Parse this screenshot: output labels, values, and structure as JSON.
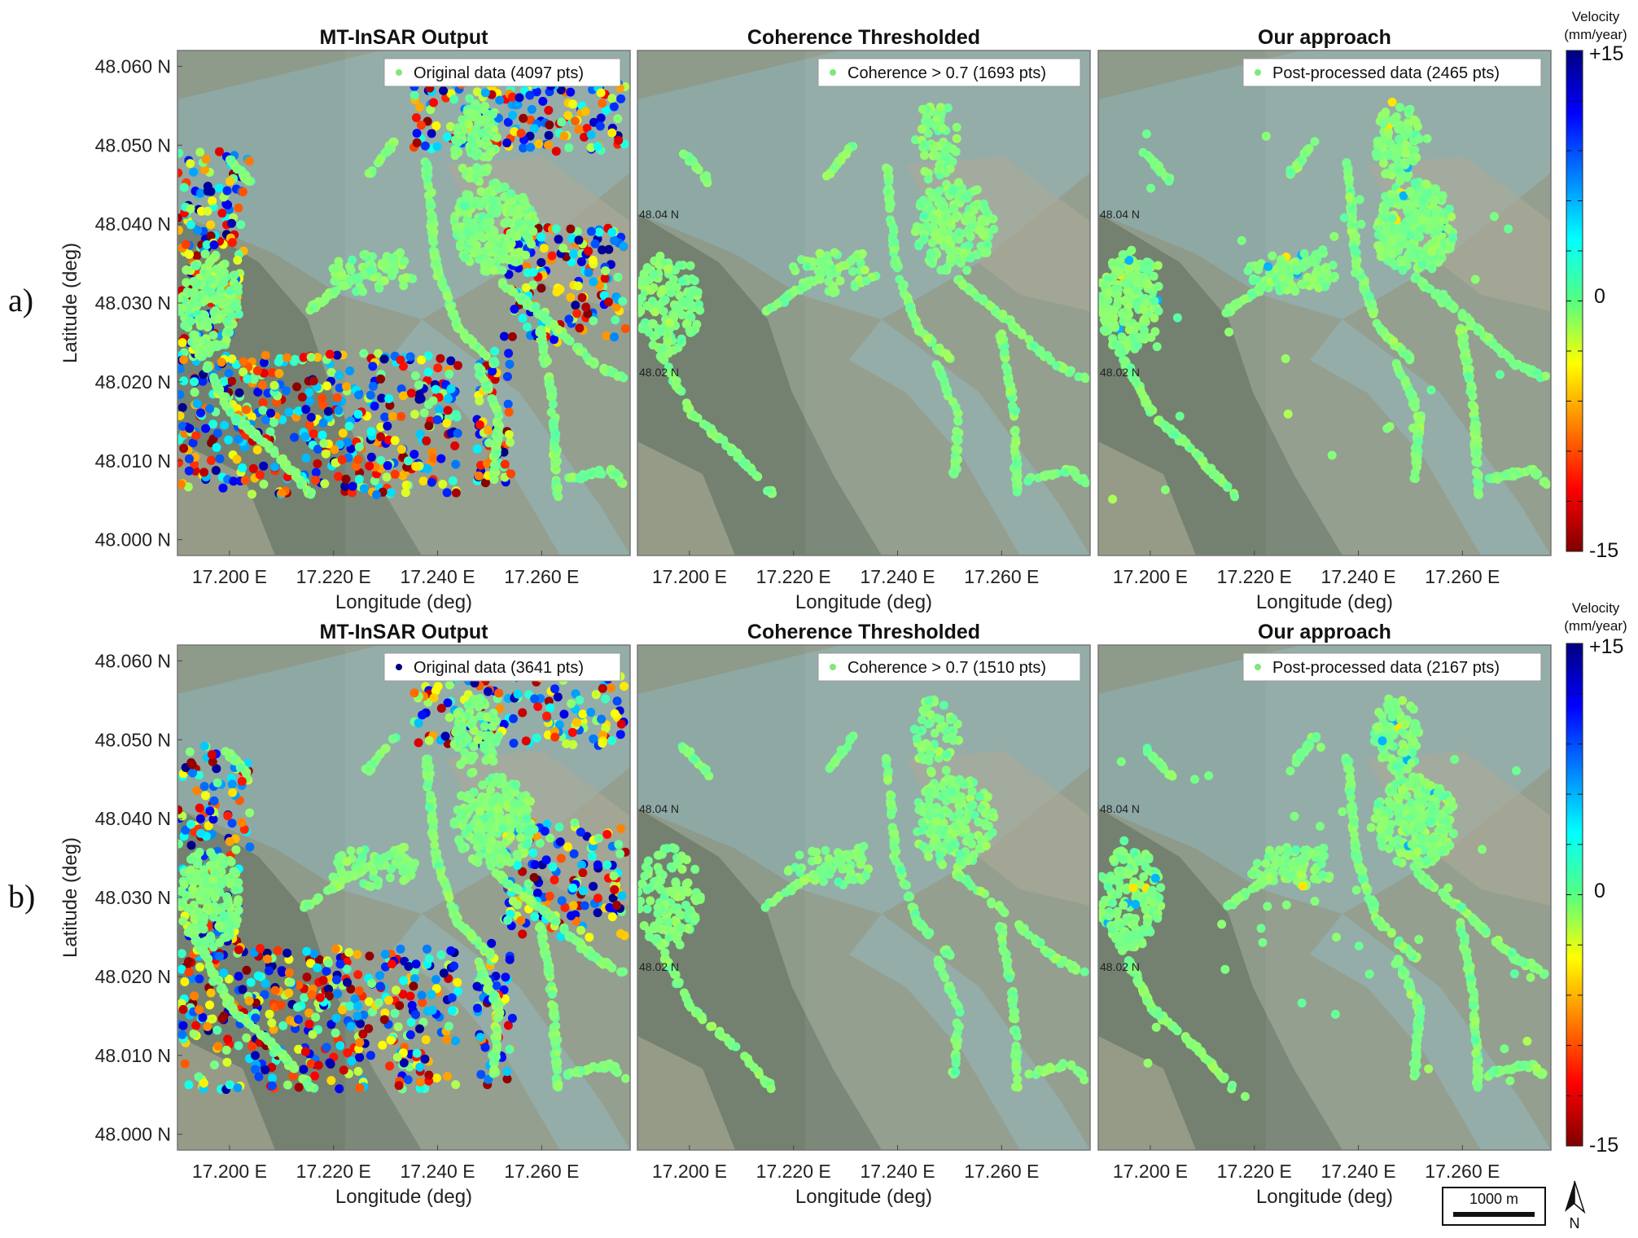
{
  "figure": {
    "colorbar": {
      "title_line1": "Velocity",
      "title_line2": "(mm/year)",
      "ticks": [
        "+15",
        "0",
        "-15"
      ],
      "range": [
        -15,
        15
      ]
    },
    "scale_bar": {
      "label": "1000 m"
    },
    "north_arrow": {
      "label": "N"
    },
    "map_grid_labels": [
      "48.04 N",
      "48.02 N"
    ],
    "colors": {
      "coherent": "#7fe87a",
      "map_field": "#8e9a8a",
      "map_river": "#8eaaa6",
      "map_forest": "#5f6e5c"
    }
  },
  "chart_data": [
    {
      "type": "scatter",
      "row": "a)",
      "title": "MT-InSAR Output",
      "legend": "Original data (4097 pts)",
      "xlabel": "Longitude (deg)",
      "ylabel": "Latitude (deg)",
      "xticks": [
        "17.200 E",
        "17.220 E",
        "17.240 E",
        "17.260 E"
      ],
      "yticks": [
        "48.060 N",
        "48.050 N",
        "48.040 N",
        "48.030 N",
        "48.020 N",
        "48.010 N",
        "48.000 N"
      ],
      "xlim": [
        17.19,
        17.277
      ],
      "ylim": [
        47.998,
        48.062
      ],
      "points": 4097,
      "coherence_threshold": null
    },
    {
      "type": "scatter",
      "row": "a)",
      "title": "Coherence Thresholded",
      "legend": "Coherence > 0.7 (1693 pts)",
      "xlabel": "Longitude (deg)",
      "ylabel": "",
      "xticks": [
        "17.200 E",
        "17.220 E",
        "17.240 E",
        "17.260 E"
      ],
      "yticks": [],
      "xlim": [
        17.19,
        17.277
      ],
      "ylim": [
        47.998,
        48.062
      ],
      "points": 1693,
      "coherence_threshold": 0.7
    },
    {
      "type": "scatter",
      "row": "a)",
      "title": "Our approach",
      "legend": "Post-processed data (2465 pts)",
      "xlabel": "Longitude (deg)",
      "ylabel": "",
      "xticks": [
        "17.200 E",
        "17.220 E",
        "17.240 E",
        "17.260 E"
      ],
      "yticks": [],
      "xlim": [
        17.19,
        17.277
      ],
      "ylim": [
        47.998,
        48.062
      ],
      "points": 2465,
      "coherence_threshold": null
    },
    {
      "type": "scatter",
      "row": "b)",
      "title": "MT-InSAR Output",
      "legend": "Original data (3641 pts)",
      "xlabel": "Longitude (deg)",
      "ylabel": "Latitude (deg)",
      "xticks": [
        "17.200 E",
        "17.220 E",
        "17.240 E",
        "17.260 E"
      ],
      "yticks": [
        "48.060 N",
        "48.050 N",
        "48.040 N",
        "48.030 N",
        "48.020 N",
        "48.010 N",
        "48.000 N"
      ],
      "xlim": [
        17.19,
        17.277
      ],
      "ylim": [
        47.998,
        48.062
      ],
      "points": 3641,
      "coherence_threshold": null
    },
    {
      "type": "scatter",
      "row": "b)",
      "title": "Coherence Thresholded",
      "legend": "Coherence > 0.7 (1510 pts)",
      "xlabel": "Longitude (deg)",
      "ylabel": "",
      "xticks": [
        "17.200 E",
        "17.220 E",
        "17.240 E",
        "17.260 E"
      ],
      "yticks": [],
      "xlim": [
        17.19,
        17.277
      ],
      "ylim": [
        47.998,
        48.062
      ],
      "points": 1510,
      "coherence_threshold": 0.7
    },
    {
      "type": "scatter",
      "row": "b)",
      "title": "Our approach",
      "legend": "Post-processed data (2167 pts)",
      "xlabel": "Longitude (deg)",
      "ylabel": "",
      "xticks": [
        "17.200 E",
        "17.220 E",
        "17.240 E",
        "17.260 E"
      ],
      "yticks": [],
      "xlim": [
        17.19,
        17.277
      ],
      "ylim": [
        47.998,
        48.062
      ],
      "points": 2167,
      "coherence_threshold": null
    }
  ]
}
